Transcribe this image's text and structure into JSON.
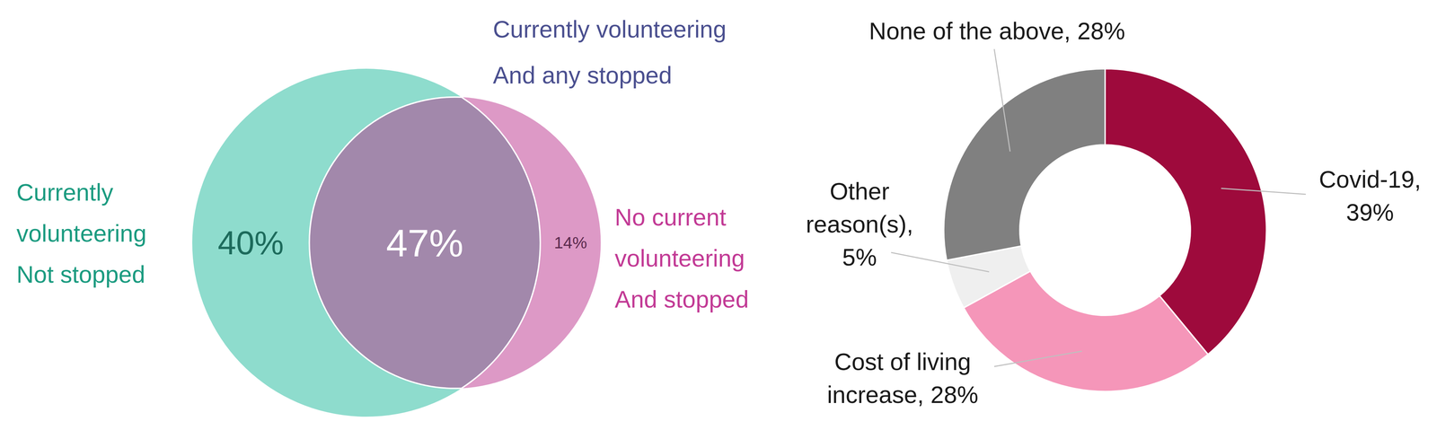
{
  "chart_data": [
    {
      "type": "venn",
      "categories": [
        [
          "Currently",
          "volunteering",
          "Not stopped"
        ],
        [
          "Currently volunteering",
          "And any stopped"
        ],
        [
          "No current",
          "volunteering",
          "And stopped"
        ]
      ],
      "values": [
        40,
        47,
        14
      ],
      "value_labels": [
        "40%",
        "47%",
        "14%"
      ],
      "colors": [
        "#8edccd",
        "#a288ab",
        "#dd99c6"
      ],
      "data_labels": true
    },
    {
      "type": "donut",
      "categories": [
        [
          "Covid-19,"
        ],
        [
          "Cost of living",
          "increase,"
        ],
        [
          "Other",
          "reason(s),"
        ],
        [
          "None of the above,"
        ]
      ],
      "values": [
        39,
        28,
        5,
        28
      ],
      "value_labels": [
        "39%",
        "28%",
        "5%",
        "28%"
      ],
      "colors": [
        "#9e0a3c",
        "#f596b9",
        "#efefef",
        "#808080"
      ],
      "data_labels": true
    }
  ]
}
